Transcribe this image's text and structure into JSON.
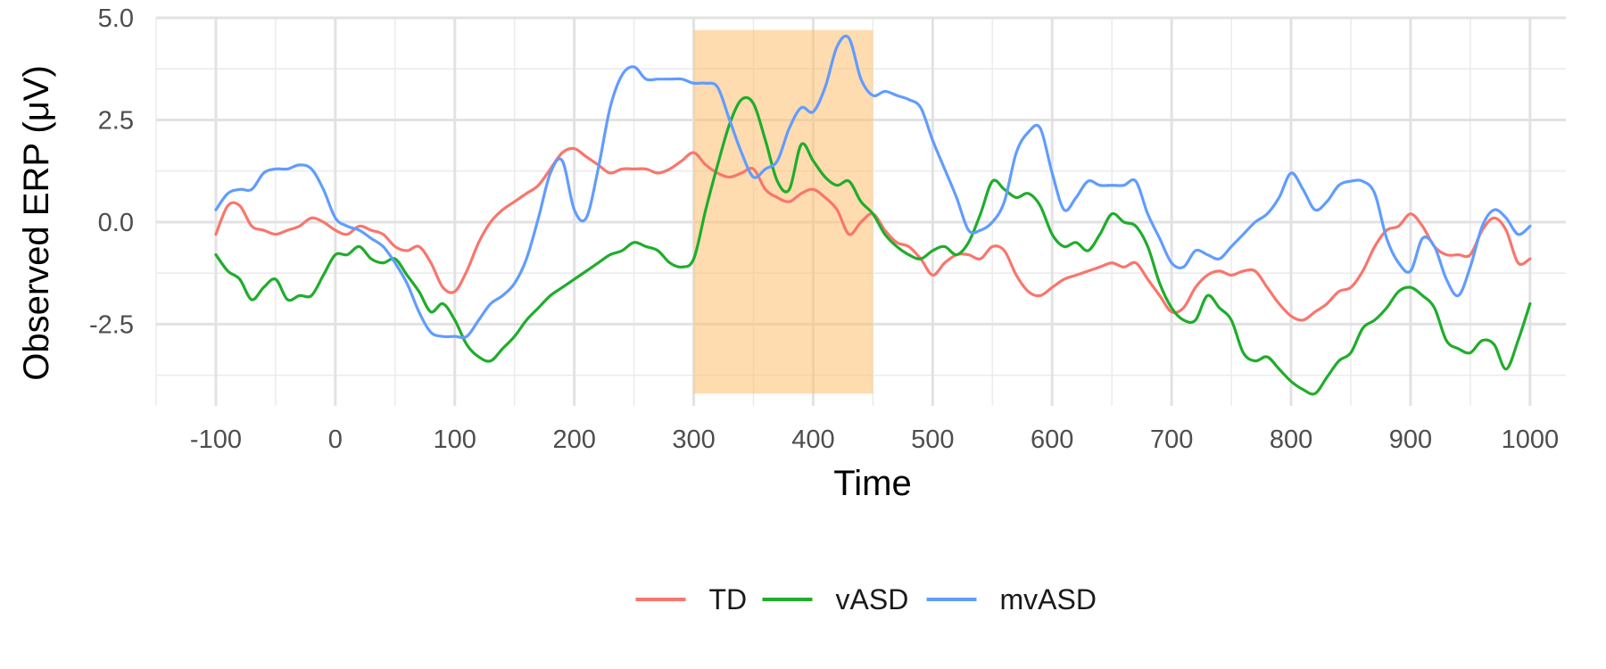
{
  "chart_data": {
    "type": "line",
    "xlabel": "Time",
    "ylabel": "Observed ERP (μV)",
    "xlim": [
      -150,
      1030
    ],
    "ylim": [
      -4.5,
      5.0
    ],
    "x_ticks": [
      -100,
      0,
      100,
      200,
      300,
      400,
      500,
      600,
      700,
      800,
      900,
      1000
    ],
    "x_tick_labels": [
      "-100",
      "0",
      "100",
      "200",
      "300",
      "400",
      "500",
      "600",
      "700",
      "800",
      "900",
      "1000"
    ],
    "y_ticks": [
      -2.5,
      0.0,
      2.5,
      5.0
    ],
    "y_tick_labels": [
      "-2.5",
      "0.0",
      "2.5",
      "5.0"
    ],
    "grid": true,
    "legend_position": "bottom",
    "highlight_band": {
      "x_range": [
        300,
        450
      ],
      "y_range": [
        -4.2,
        4.7
      ],
      "color": "#FDBF6F"
    },
    "x": [
      -100,
      -90,
      -80,
      -70,
      -60,
      -50,
      -40,
      -30,
      -20,
      -10,
      0,
      10,
      20,
      30,
      40,
      50,
      60,
      70,
      80,
      90,
      100,
      110,
      120,
      130,
      140,
      150,
      160,
      170,
      180,
      190,
      200,
      210,
      220,
      230,
      240,
      250,
      260,
      270,
      280,
      290,
      300,
      310,
      320,
      330,
      340,
      350,
      360,
      370,
      380,
      390,
      400,
      410,
      420,
      430,
      440,
      450,
      460,
      470,
      480,
      490,
      500,
      510,
      520,
      530,
      540,
      550,
      560,
      570,
      580,
      590,
      600,
      610,
      620,
      630,
      640,
      650,
      660,
      670,
      680,
      690,
      700,
      710,
      720,
      730,
      740,
      750,
      760,
      770,
      780,
      790,
      800,
      810,
      820,
      830,
      840,
      850,
      860,
      870,
      880,
      890,
      900,
      910,
      920,
      930,
      940,
      950,
      960,
      970,
      980,
      990,
      1000
    ],
    "series": [
      {
        "name": "TD",
        "color": "#F8766D",
        "values": [
          -0.3,
          0.4,
          0.4,
          -0.1,
          -0.2,
          -0.3,
          -0.2,
          -0.1,
          0.1,
          0.0,
          -0.2,
          -0.3,
          -0.1,
          -0.2,
          -0.3,
          -0.6,
          -0.7,
          -0.6,
          -1.0,
          -1.6,
          -1.7,
          -1.2,
          -0.5,
          0.0,
          0.3,
          0.5,
          0.7,
          0.9,
          1.3,
          1.7,
          1.8,
          1.6,
          1.4,
          1.2,
          1.3,
          1.3,
          1.3,
          1.2,
          1.3,
          1.5,
          1.7,
          1.4,
          1.2,
          1.1,
          1.2,
          1.3,
          0.8,
          0.6,
          0.5,
          0.7,
          0.8,
          0.6,
          0.3,
          -0.3,
          0.0,
          0.2,
          -0.2,
          -0.5,
          -0.6,
          -0.9,
          -1.3,
          -1.0,
          -0.8,
          -0.8,
          -0.9,
          -0.6,
          -0.7,
          -1.3,
          -1.7,
          -1.8,
          -1.6,
          -1.4,
          -1.3,
          -1.2,
          -1.1,
          -1.0,
          -1.1,
          -1.0,
          -1.4,
          -1.8,
          -2.2,
          -2.1,
          -1.6,
          -1.3,
          -1.2,
          -1.3,
          -1.2,
          -1.2,
          -1.6,
          -2.0,
          -2.3,
          -2.4,
          -2.2,
          -2.0,
          -1.7,
          -1.6,
          -1.2,
          -0.6,
          -0.2,
          -0.1,
          0.2,
          -0.1,
          -0.6,
          -0.8,
          -0.8,
          -0.8,
          -0.2,
          0.1,
          -0.2,
          -1.0,
          -0.9
        ]
      },
      {
        "name": "vASD",
        "color": "#1FAD2B",
        "values": [
          -0.8,
          -1.2,
          -1.4,
          -1.9,
          -1.6,
          -1.4,
          -1.9,
          -1.8,
          -1.8,
          -1.3,
          -0.8,
          -0.8,
          -0.6,
          -0.9,
          -1.0,
          -0.9,
          -1.3,
          -1.7,
          -2.2,
          -2.0,
          -2.4,
          -3.0,
          -3.3,
          -3.4,
          -3.1,
          -2.8,
          -2.4,
          -2.1,
          -1.8,
          -1.6,
          -1.4,
          -1.2,
          -1.0,
          -0.8,
          -0.7,
          -0.5,
          -0.6,
          -0.7,
          -1.0,
          -1.1,
          -0.9,
          0.3,
          1.4,
          2.4,
          3.0,
          2.9,
          2.0,
          1.0,
          0.8,
          1.9,
          1.5,
          1.1,
          0.9,
          1.0,
          0.5,
          0.2,
          -0.3,
          -0.6,
          -0.8,
          -0.9,
          -0.7,
          -0.6,
          -0.8,
          -0.5,
          0.2,
          1.0,
          0.8,
          0.6,
          0.7,
          0.4,
          -0.3,
          -0.6,
          -0.5,
          -0.7,
          -0.3,
          0.2,
          0.0,
          -0.1,
          -0.6,
          -1.5,
          -2.1,
          -2.4,
          -2.4,
          -1.8,
          -2.1,
          -2.4,
          -3.2,
          -3.4,
          -3.3,
          -3.6,
          -3.9,
          -4.1,
          -4.2,
          -3.8,
          -3.4,
          -3.2,
          -2.6,
          -2.4,
          -2.1,
          -1.7,
          -1.6,
          -1.8,
          -2.1,
          -2.9,
          -3.1,
          -3.2,
          -2.9,
          -3.0,
          -3.6,
          -2.9,
          -2.0
        ]
      },
      {
        "name": "mvASD",
        "color": "#619CFF",
        "values": [
          0.3,
          0.7,
          0.8,
          0.8,
          1.2,
          1.3,
          1.3,
          1.4,
          1.3,
          0.8,
          0.1,
          -0.1,
          -0.2,
          -0.4,
          -0.6,
          -1.0,
          -1.5,
          -2.2,
          -2.7,
          -2.8,
          -2.8,
          -2.8,
          -2.4,
          -2.0,
          -1.8,
          -1.5,
          -0.9,
          0.1,
          1.2,
          1.5,
          0.3,
          0.1,
          1.3,
          2.8,
          3.6,
          3.8,
          3.5,
          3.5,
          3.5,
          3.5,
          3.4,
          3.4,
          3.3,
          2.5,
          1.7,
          1.1,
          1.3,
          1.5,
          2.3,
          2.8,
          2.7,
          3.3,
          4.3,
          4.5,
          3.5,
          3.1,
          3.2,
          3.1,
          3.0,
          2.8,
          2.0,
          1.3,
          0.6,
          -0.2,
          -0.2,
          0.0,
          0.5,
          1.7,
          2.2,
          2.3,
          1.2,
          0.3,
          0.6,
          1.0,
          0.9,
          0.9,
          0.9,
          1.0,
          0.2,
          -0.4,
          -1.0,
          -1.1,
          -0.7,
          -0.8,
          -0.9,
          -0.6,
          -0.3,
          0.0,
          0.2,
          0.6,
          1.2,
          0.8,
          0.3,
          0.5,
          0.9,
          1.0,
          1.0,
          0.7,
          -0.4,
          -1.0,
          -1.2,
          -0.4,
          -0.6,
          -1.4,
          -1.8,
          -1.1,
          -0.1,
          0.3,
          0.1,
          -0.3,
          -0.1
        ]
      }
    ]
  }
}
